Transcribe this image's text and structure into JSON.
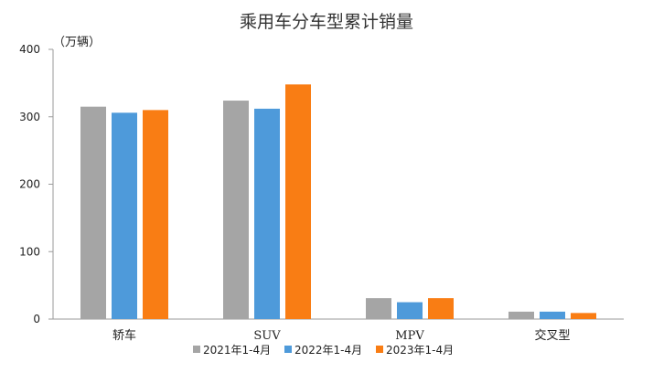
{
  "chart_data": {
    "type": "bar",
    "title": "乘用车分车型累计销量",
    "unit_label": "（万辆）",
    "categories": [
      "轿车",
      "SUV",
      "MPV",
      "交叉型"
    ],
    "series": [
      {
        "name": "2021年1-4月",
        "color": "#a5a5a5",
        "values": [
          315,
          324,
          31,
          11
        ]
      },
      {
        "name": "2022年1-4月",
        "color": "#4e9ada",
        "values": [
          306,
          312,
          25,
          11
        ]
      },
      {
        "name": "2023年1-4月",
        "color": "#f97d14",
        "values": [
          310,
          348,
          31,
          9
        ]
      }
    ],
    "y_ticks": [
      "0",
      "100",
      "200",
      "300",
      "400"
    ],
    "ylim": [
      0,
      400
    ],
    "grid": false,
    "legend_position": "bottom"
  }
}
